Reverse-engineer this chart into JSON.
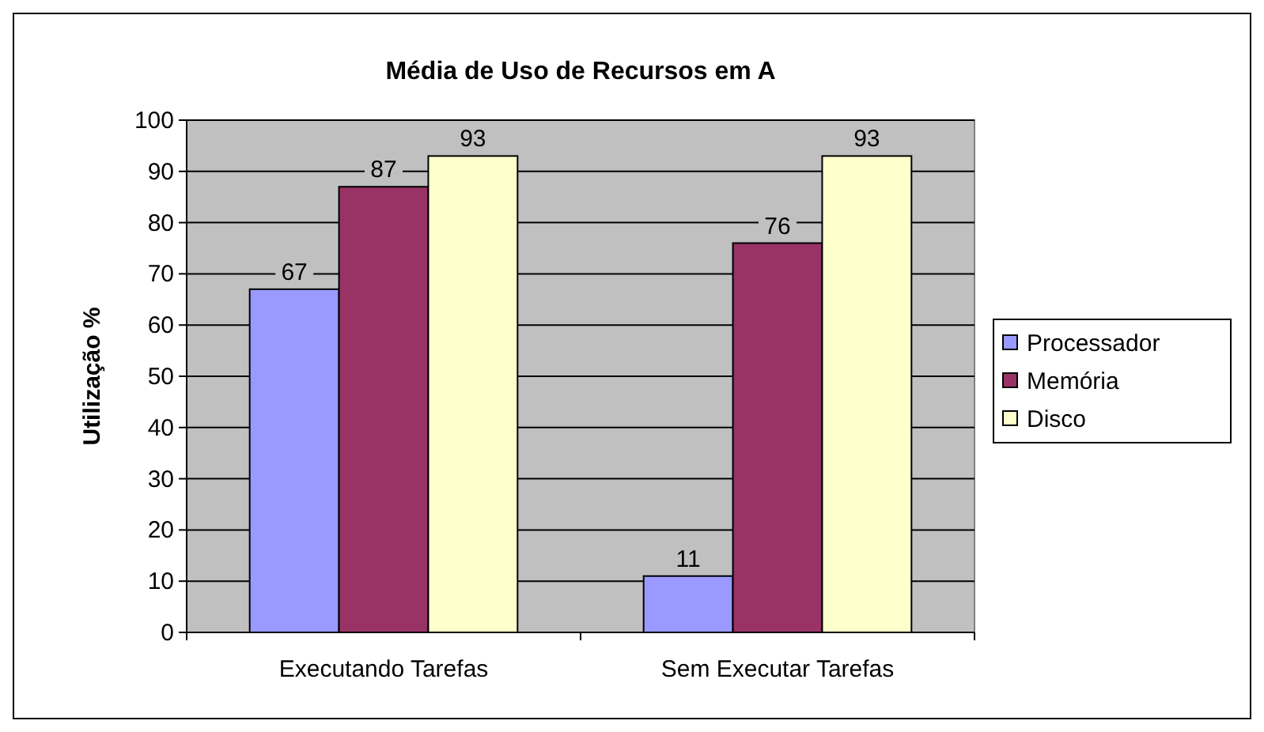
{
  "chart_data": {
    "type": "bar",
    "title": "Média de Uso de Recursos em A",
    "ylabel": "Utilização %",
    "categories": [
      "Executando Tarefas",
      "Sem Executar Tarefas"
    ],
    "series": [
      {
        "name": "Processador",
        "color": "#9999ff",
        "values": [
          67,
          11
        ]
      },
      {
        "name": "Memória",
        "color": "#993366",
        "values": [
          87,
          76
        ]
      },
      {
        "name": "Disco",
        "color": "#ffffcc",
        "values": [
          93,
          93
        ]
      }
    ],
    "ylim": [
      0,
      100
    ],
    "yticks": [
      0,
      10,
      20,
      30,
      40,
      50,
      60,
      70,
      80,
      90,
      100
    ],
    "grid": "y",
    "legend": "right",
    "data_labels": true
  }
}
